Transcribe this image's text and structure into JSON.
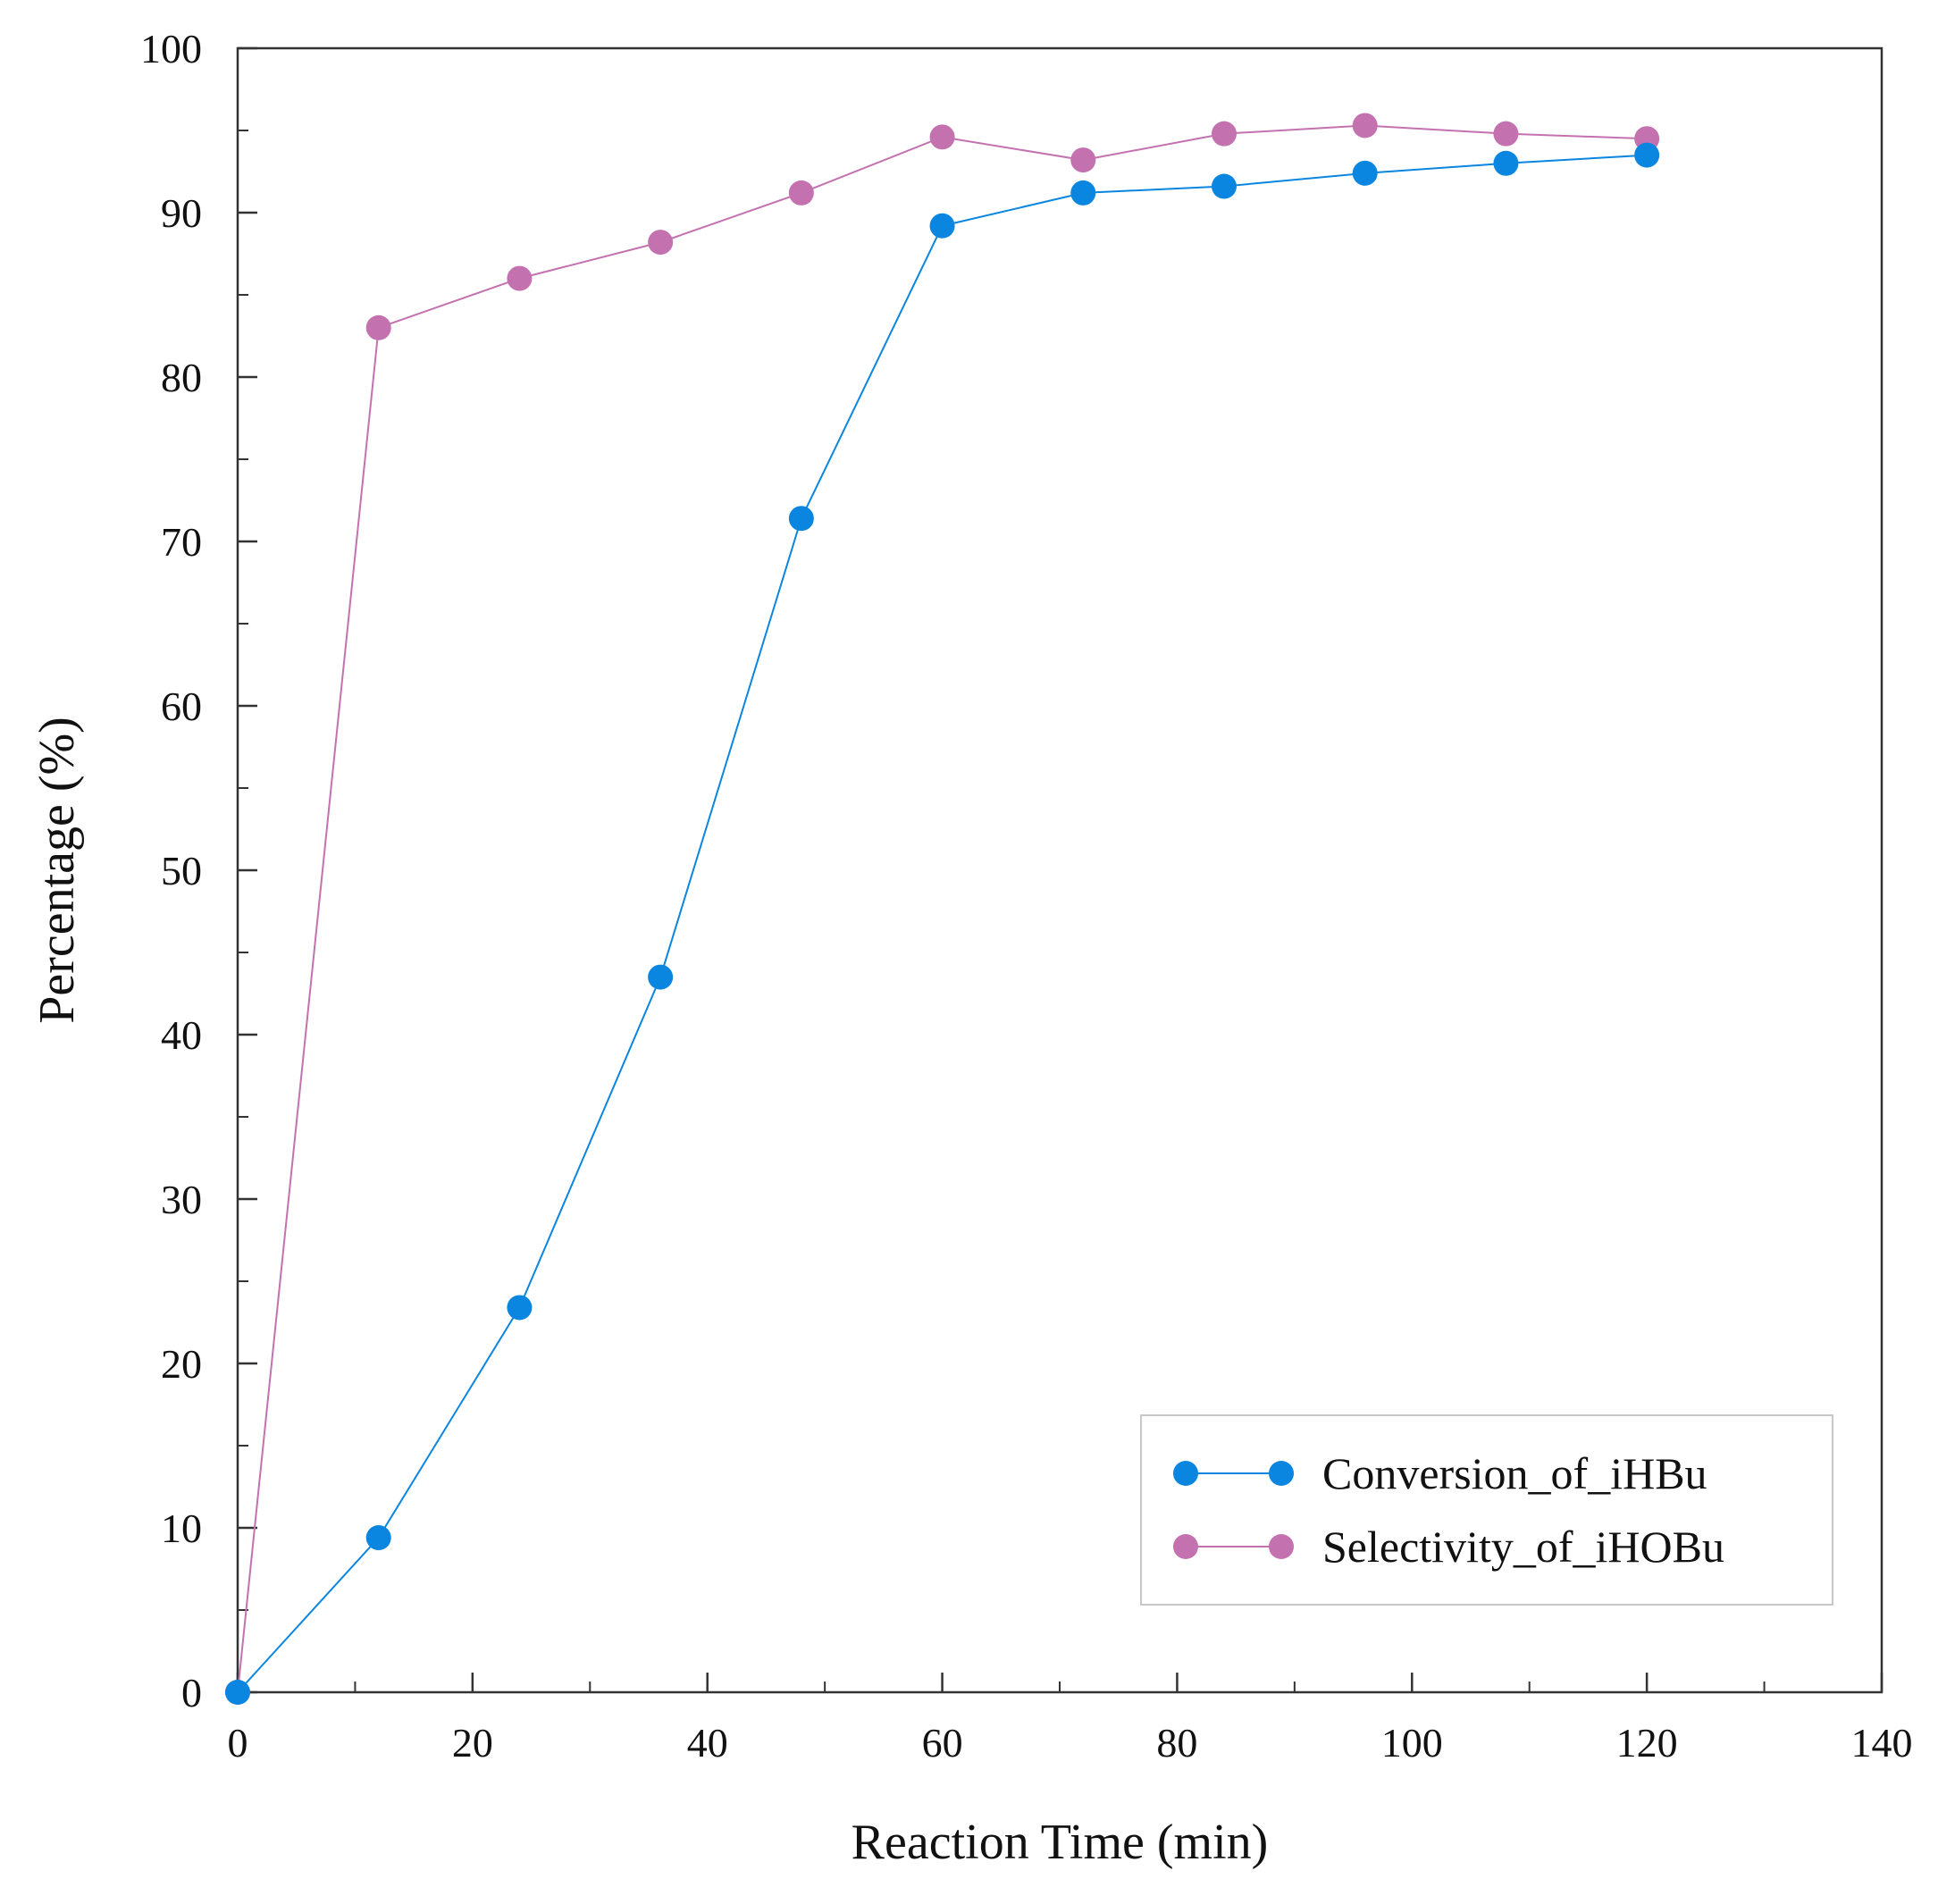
{
  "chart_data": {
    "type": "line",
    "title": "",
    "xlabel": "Reaction Time (min)",
    "ylabel": "Percentage (%)",
    "xlim": [
      0,
      140
    ],
    "ylim": [
      0,
      100
    ],
    "xticks": [
      0,
      20,
      40,
      60,
      80,
      100,
      120,
      140
    ],
    "yticks": [
      0,
      10,
      20,
      30,
      40,
      50,
      60,
      70,
      80,
      90,
      100
    ],
    "x_tick_labels": [
      "0",
      "20",
      "40",
      "60",
      "80",
      "100",
      "120",
      "140"
    ],
    "y_tick_labels": [
      "0",
      "10",
      "20",
      "30",
      "40",
      "50",
      "60",
      "70",
      "80",
      "90",
      "100"
    ],
    "grid": false,
    "legend_position": "bottom-right",
    "series": [
      {
        "name": "Conversion_of_iHBu",
        "color": "#0a86e0",
        "x": [
          0,
          12,
          24,
          36,
          48,
          60,
          72,
          84,
          96,
          108,
          120
        ],
        "y": [
          0,
          9.4,
          23.4,
          43.5,
          71.4,
          89.2,
          91.2,
          91.6,
          92.4,
          93.0,
          93.5
        ]
      },
      {
        "name": "Selectivity_of_iHOBu",
        "color": "#c471b0",
        "x": [
          0,
          12,
          24,
          36,
          48,
          60,
          72,
          84,
          96,
          108,
          120
        ],
        "y": [
          0,
          83.0,
          86.0,
          88.2,
          91.2,
          94.6,
          93.2,
          94.8,
          95.3,
          94.8,
          94.5
        ]
      }
    ]
  }
}
